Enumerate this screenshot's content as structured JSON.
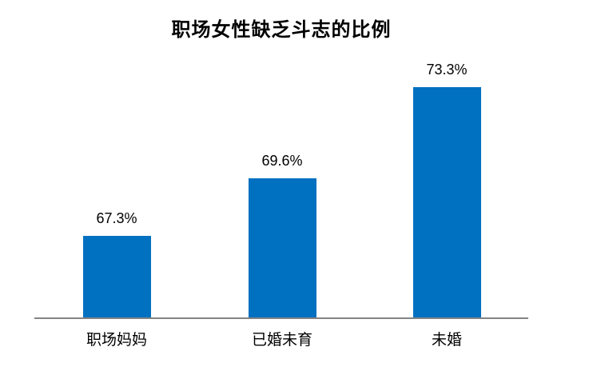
{
  "title": "职场女性缺乏斗志的比例",
  "colors": {
    "bar": "#0070C0",
    "axis": "#848484",
    "text": "#000000"
  },
  "chart_data": {
    "type": "bar",
    "title": "职场女性缺乏斗志的比例",
    "categories": [
      "职场妈妈",
      "已婚未育",
      "未婚"
    ],
    "values": [
      67.3,
      69.6,
      73.3
    ],
    "value_labels": [
      "67.3%",
      "69.6%",
      "73.3%"
    ],
    "xlabel": "",
    "ylabel": "",
    "ylim": [
      64,
      74
    ],
    "grid": false,
    "legend": false,
    "bar_color": "#0070C0",
    "value_labels_position": "above-bars"
  }
}
